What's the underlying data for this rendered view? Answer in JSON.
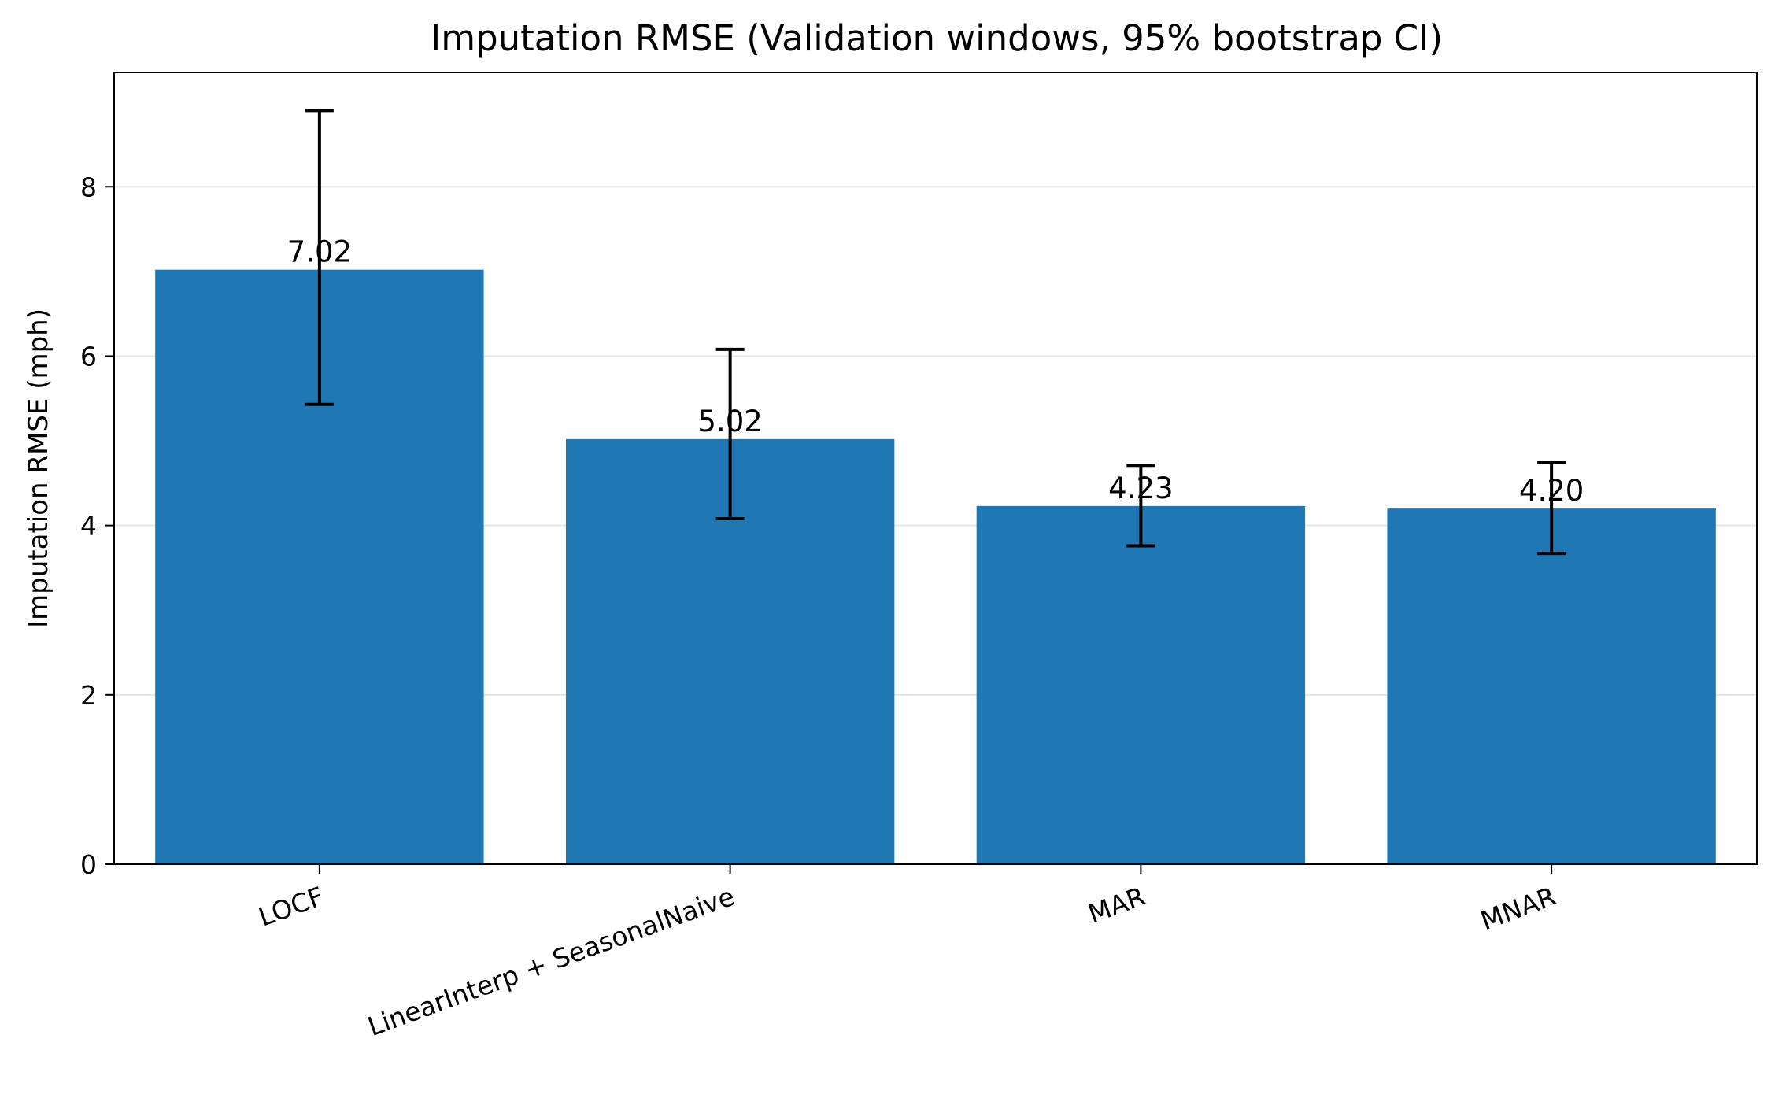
{
  "chart_data": {
    "type": "bar",
    "title": "Imputation RMSE (Validation windows, 95% bootstrap CI)",
    "xlabel": "",
    "ylabel": "Imputation RMSE (mph)",
    "categories": [
      "LOCF",
      "LinearInterp + SeasonalNaive",
      "MAR",
      "MNAR"
    ],
    "values": [
      7.02,
      5.02,
      4.23,
      4.2
    ],
    "value_labels": [
      "7.02",
      "5.02",
      "4.23",
      "4.20"
    ],
    "ci_lower": [
      5.43,
      4.08,
      3.76,
      3.67
    ],
    "ci_upper": [
      8.9,
      6.08,
      4.71,
      4.74
    ],
    "ylim": [
      0,
      9.35
    ],
    "yticks": [
      0,
      2,
      4,
      6,
      8
    ],
    "ytick_labels": [
      "0",
      "2",
      "4",
      "6",
      "8"
    ],
    "grid": "y",
    "legend": "none",
    "colors": {
      "bar": "#1f77b4",
      "errorbar": "#000000",
      "grid": "#e6e6e6",
      "axis": "#000000"
    }
  }
}
